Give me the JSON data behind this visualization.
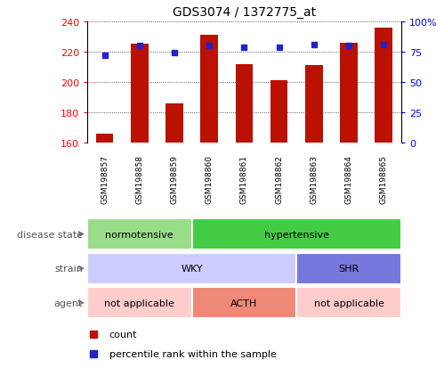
{
  "title": "GDS3074 / 1372775_at",
  "samples": [
    "GSM198857",
    "GSM198858",
    "GSM198859",
    "GSM198860",
    "GSM198861",
    "GSM198862",
    "GSM198863",
    "GSM198864",
    "GSM198865"
  ],
  "counts": [
    166,
    225,
    186,
    231,
    212,
    201,
    211,
    226,
    236
  ],
  "percentile_ranks": [
    72,
    80,
    74,
    80,
    79,
    79,
    81,
    80,
    81
  ],
  "ylim_left": [
    160,
    240
  ],
  "ylim_right": [
    0,
    100
  ],
  "yticks_left": [
    160,
    180,
    200,
    220,
    240
  ],
  "yticks_right": [
    0,
    25,
    50,
    75,
    100
  ],
  "bar_color": "#bb1100",
  "dot_color": "#2222cc",
  "disease_segs": [
    {
      "label": "normotensive",
      "start": 0,
      "end": 3,
      "color": "#99dd88"
    },
    {
      "label": "hypertensive",
      "start": 3,
      "end": 9,
      "color": "#44cc44"
    }
  ],
  "strain_segs": [
    {
      "label": "WKY",
      "start": 0,
      "end": 6,
      "color": "#ccccff"
    },
    {
      "label": "SHR",
      "start": 6,
      "end": 9,
      "color": "#7777dd"
    }
  ],
  "agent_segs": [
    {
      "label": "not applicable",
      "start": 0,
      "end": 3,
      "color": "#ffcccc"
    },
    {
      "label": "ACTH",
      "start": 3,
      "end": 6,
      "color": "#ee8877"
    },
    {
      "label": "not applicable",
      "start": 6,
      "end": 9,
      "color": "#ffcccc"
    }
  ],
  "row_labels": [
    "disease state",
    "strain",
    "agent"
  ],
  "legend_count_color": "#bb1100",
  "legend_dot_color": "#2222cc"
}
